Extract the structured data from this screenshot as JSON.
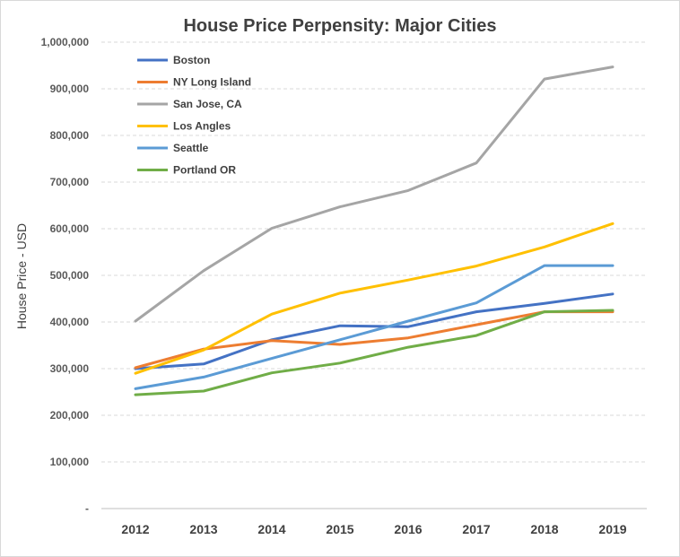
{
  "chart_data": {
    "type": "line",
    "title": "House Price Perpensity: Major Cities",
    "xlabel": "",
    "ylabel": "House Price - USD",
    "x": [
      "2012",
      "2013",
      "2014",
      "2015",
      "2016",
      "2017",
      "2018",
      "2019"
    ],
    "ylim": [
      0,
      1000000
    ],
    "yticks": [
      0,
      100000,
      200000,
      300000,
      400000,
      500000,
      600000,
      700000,
      800000,
      900000,
      1000000
    ],
    "ytick_labels": [
      "-",
      "100,000",
      "200,000",
      "300,000",
      "400,000",
      "500,000",
      "600,000",
      "700,000",
      "800,000",
      "900,000",
      "1,000,000"
    ],
    "grid": true,
    "legend_position": "top-left",
    "series": [
      {
        "name": "Boston",
        "color": "#4472c4",
        "values": [
          300000,
          310000,
          362000,
          392000,
          390000,
          422000,
          440000,
          460000
        ]
      },
      {
        "name": "NY Long Island",
        "color": "#ed7d31",
        "values": [
          302000,
          342000,
          360000,
          352000,
          366000,
          394000,
          422000,
          422000
        ]
      },
      {
        "name": "San Jose, CA",
        "color": "#a5a5a5",
        "values": [
          402000,
          510000,
          601000,
          647000,
          682000,
          741000,
          921000,
          947000
        ]
      },
      {
        "name": "Los Angles",
        "color": "#ffc000",
        "values": [
          290000,
          340000,
          417000,
          462000,
          490000,
          520000,
          561000,
          611000
        ]
      },
      {
        "name": "Seattle",
        "color": "#5b9bd5",
        "values": [
          257000,
          282000,
          322000,
          362000,
          402000,
          441000,
          521000,
          521000
        ]
      },
      {
        "name": "Portland OR",
        "color": "#70ad47",
        "values": [
          244000,
          252000,
          291000,
          312000,
          346000,
          371000,
          422000,
          425000
        ]
      }
    ]
  }
}
